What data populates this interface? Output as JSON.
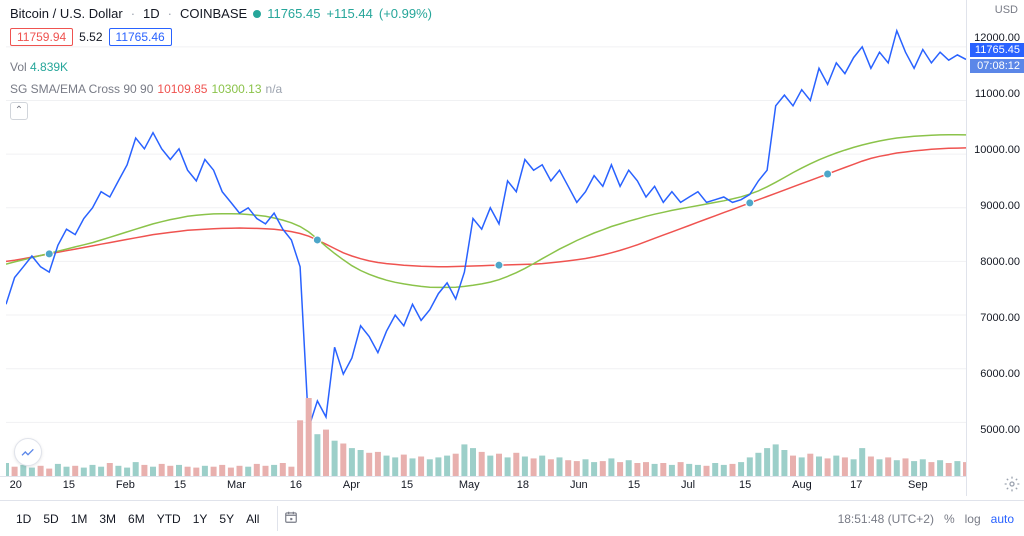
{
  "header": {
    "symbol": "Bitcoin / U.S. Dollar",
    "interval": "1D",
    "exchange": "COINBASE",
    "dot_color": "#26a69a",
    "last": "11765.45",
    "change": "+115.44",
    "change_pct": "(+0.99%)",
    "change_color": "#26a69a"
  },
  "ohlc": {
    "open": "11759.94",
    "open_color": "#ef5350",
    "mid": "5.52",
    "close": "11765.46",
    "close_color": "#2962ff"
  },
  "volume": {
    "label": "Vol",
    "value": "4.839K",
    "value_color": "#26a69a"
  },
  "indicator": {
    "name": "SG SMA/EMA Cross 90 90",
    "v1": "10109.85",
    "v1_color": "#ef5350",
    "v2": "10300.13",
    "v2_color": "#8bc34a",
    "v3": "n/a",
    "v3_color": "#9ca3af"
  },
  "collapse_glyph": "⌃",
  "y_axis": {
    "unit": "USD",
    "min": 4000,
    "max": 12500,
    "ticks": [
      12000,
      11000,
      10000,
      9000,
      8000,
      7000,
      6000,
      5000
    ],
    "labels": [
      "12000.00",
      "11000.00",
      "10000.00",
      "9000.00",
      "8000.00",
      "7000.00",
      "6000.00",
      "5000.00"
    ],
    "price_tag": {
      "value": "11765.45",
      "bg": "#2962ff"
    },
    "time_tag": {
      "value": "07:08:12",
      "bg": "#5b87e8"
    }
  },
  "x_axis": {
    "labels": [
      "20",
      "15",
      "Feb",
      "15",
      "Mar",
      "16",
      "Apr",
      "15",
      "May",
      "18",
      "Jun",
      "15",
      "Jul",
      "15",
      "Aug",
      "17",
      "Sep"
    ],
    "positions_pct": [
      1,
      6.5,
      12,
      18,
      23.5,
      30,
      35.5,
      41.5,
      47.5,
      53.5,
      59,
      65,
      70.5,
      76.5,
      82,
      88,
      94
    ]
  },
  "timeframes": [
    "1D",
    "5D",
    "1M",
    "3M",
    "6M",
    "YTD",
    "1Y",
    "5Y",
    "All"
  ],
  "bottom": {
    "time": "18:51:48 (UTC+2)",
    "pct": "%",
    "log": "log",
    "auto": "auto",
    "auto_color": "#2962ff"
  },
  "chart": {
    "colors": {
      "price": "#2962ff",
      "sma": "#ef5350",
      "ema": "#8bc34a",
      "cross_dot": "#4da6c9",
      "grid": "#f0f1f3"
    },
    "price": [
      7200,
      7700,
      7900,
      8100,
      7900,
      7800,
      8300,
      8600,
      8500,
      8800,
      9000,
      9300,
      9200,
      9500,
      9800,
      10300,
      10100,
      10400,
      10100,
      9900,
      10100,
      9700,
      9500,
      9900,
      9700,
      9300,
      9100,
      8900,
      9000,
      8800,
      8700,
      8900,
      8600,
      8400,
      7900,
      4900,
      5400,
      5100,
      6400,
      5900,
      6200,
      6800,
      6600,
      6300,
      6700,
      7000,
      6800,
      7200,
      6900,
      7100,
      7400,
      7600,
      7300,
      7800,
      8800,
      8600,
      9000,
      8700,
      9500,
      9300,
      9900,
      9700,
      9800,
      9500,
      9700,
      9400,
      9100,
      9300,
      9600,
      9400,
      9800,
      9400,
      9700,
      9500,
      9200,
      9400,
      9100,
      9300,
      9100,
      9200,
      9300,
      9100,
      9150,
      9200,
      9100,
      9150,
      9250,
      9500,
      9700,
      10900,
      11100,
      10900,
      11200,
      11000,
      11600,
      11300,
      11700,
      11500,
      11800,
      12000,
      11600,
      11900,
      11700,
      12300,
      11900,
      11600,
      11950,
      11700,
      11900,
      11750,
      11850,
      11765
    ],
    "sma": [
      8000,
      8020,
      8050,
      8080,
      8110,
      8140,
      8170,
      8200,
      8230,
      8260,
      8290,
      8320,
      8350,
      8380,
      8410,
      8440,
      8470,
      8500,
      8520,
      8540,
      8560,
      8580,
      8590,
      8600,
      8610,
      8615,
      8620,
      8622,
      8620,
      8615,
      8608,
      8598,
      8580,
      8555,
      8520,
      8470,
      8400,
      8320,
      8240,
      8160,
      8100,
      8050,
      8010,
      7980,
      7960,
      7945,
      7930,
      7920,
      7910,
      7905,
      7900,
      7900,
      7905,
      7910,
      7915,
      7920,
      7925,
      7930,
      7935,
      7940,
      7945,
      7950,
      7960,
      7975,
      7990,
      8010,
      8030,
      8055,
      8085,
      8120,
      8160,
      8205,
      8255,
      8310,
      8370,
      8430,
      8490,
      8550,
      8610,
      8670,
      8730,
      8790,
      8850,
      8910,
      8970,
      9030,
      9090,
      9150,
      9210,
      9270,
      9330,
      9390,
      9450,
      9510,
      9570,
      9630,
      9690,
      9750,
      9810,
      9870,
      9920,
      9960,
      9990,
      10020,
      10040,
      10060,
      10075,
      10090,
      10100,
      10108,
      10112,
      10115
    ],
    "ema": [
      7950,
      7990,
      8030,
      8070,
      8110,
      8150,
      8190,
      8230,
      8270,
      8310,
      8350,
      8400,
      8450,
      8500,
      8550,
      8600,
      8650,
      8700,
      8740,
      8780,
      8810,
      8840,
      8860,
      8875,
      8885,
      8890,
      8890,
      8885,
      8875,
      8860,
      8840,
      8810,
      8770,
      8720,
      8650,
      8550,
      8420,
      8280,
      8150,
      8030,
      7920,
      7830,
      7760,
      7700,
      7650,
      7610,
      7580,
      7555,
      7535,
      7520,
      7515,
      7515,
      7520,
      7535,
      7555,
      7580,
      7615,
      7660,
      7720,
      7790,
      7870,
      7960,
      8050,
      8140,
      8230,
      8310,
      8390,
      8460,
      8530,
      8590,
      8650,
      8700,
      8750,
      8795,
      8840,
      8880,
      8915,
      8950,
      8980,
      9010,
      9040,
      9070,
      9100,
      9130,
      9165,
      9205,
      9255,
      9315,
      9390,
      9475,
      9565,
      9655,
      9740,
      9820,
      9895,
      9960,
      10020,
      10075,
      10125,
      10170,
      10210,
      10245,
      10275,
      10300,
      10318,
      10332,
      10344,
      10352,
      10358,
      10360,
      10360,
      10358
    ],
    "cross_idx": [
      5,
      36,
      57,
      86,
      95
    ],
    "volumes": [
      14,
      10,
      12,
      9,
      11,
      8,
      13,
      10,
      11,
      9,
      12,
      10,
      14,
      11,
      9,
      15,
      12,
      10,
      13,
      11,
      12,
      10,
      9,
      11,
      10,
      12,
      9,
      11,
      10,
      13,
      11,
      12,
      14,
      10,
      60,
      84,
      45,
      50,
      38,
      35,
      30,
      28,
      25,
      26,
      22,
      20,
      23,
      19,
      21,
      18,
      20,
      22,
      24,
      34,
      30,
      26,
      22,
      24,
      20,
      25,
      21,
      19,
      22,
      18,
      20,
      17,
      16,
      18,
      15,
      16,
      19,
      15,
      17,
      14,
      15,
      13,
      14,
      12,
      15,
      13,
      12,
      11,
      14,
      12,
      13,
      15,
      20,
      25,
      30,
      34,
      28,
      22,
      20,
      24,
      21,
      19,
      22,
      20,
      18,
      30,
      21,
      18,
      20,
      17,
      19,
      16,
      18,
      15,
      17,
      14,
      16,
      15
    ],
    "vol_up": [
      1,
      0,
      1,
      1,
      0,
      0,
      1,
      1,
      0,
      1,
      1,
      1,
      0,
      1,
      1,
      1,
      0,
      1,
      0,
      0,
      1,
      0,
      0,
      1,
      0,
      0,
      0,
      0,
      1,
      0,
      0,
      1,
      0,
      0,
      0,
      0,
      1,
      0,
      1,
      0,
      1,
      1,
      0,
      0,
      1,
      1,
      0,
      1,
      0,
      1,
      1,
      1,
      0,
      1,
      1,
      0,
      1,
      0,
      1,
      0,
      1,
      0,
      1,
      0,
      1,
      0,
      0,
      1,
      1,
      0,
      1,
      0,
      1,
      0,
      0,
      1,
      0,
      1,
      0,
      1,
      1,
      0,
      1,
      1,
      0,
      1,
      1,
      1,
      1,
      1,
      1,
      0,
      1,
      0,
      1,
      0,
      1,
      0,
      1,
      1,
      0,
      1,
      0,
      1,
      0,
      1,
      1,
      0,
      1,
      0,
      1,
      0
    ],
    "vol_colors": {
      "up": "#9ccfc9",
      "down": "#e8b0ae"
    }
  }
}
